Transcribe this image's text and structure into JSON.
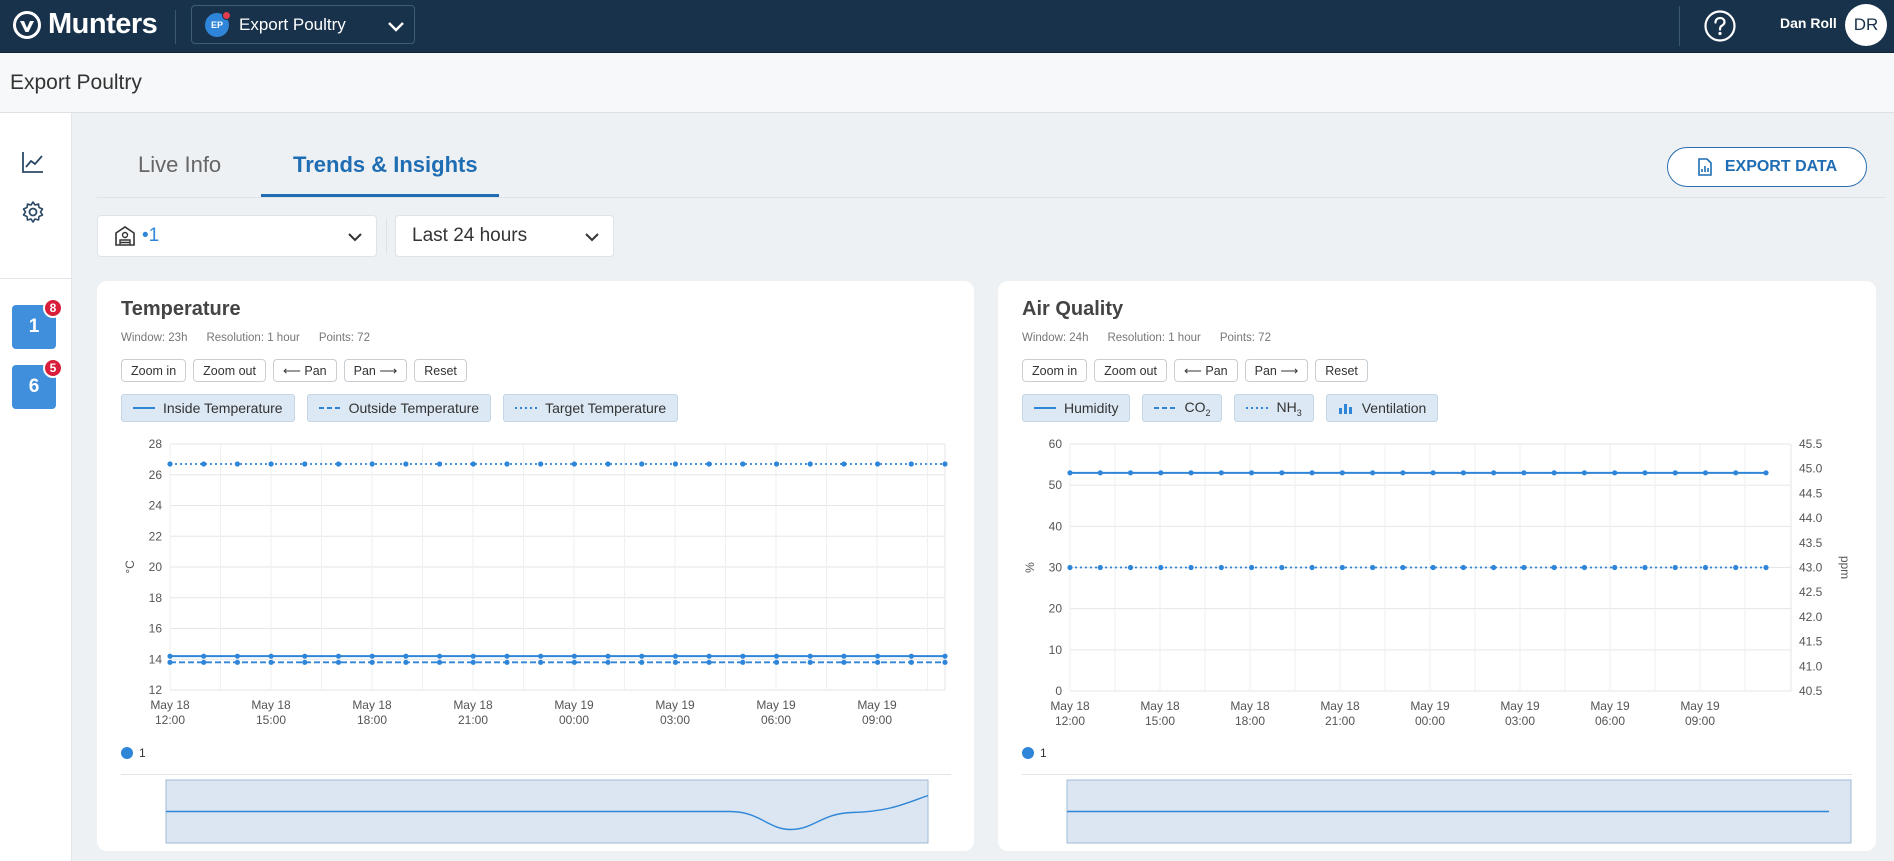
{
  "topbar": {
    "brand": "Munters",
    "site_badge": "EP",
    "site_name": "Export Poultry",
    "user_name": "Dan Roll",
    "user_initials": "DR"
  },
  "page": {
    "title": "Export Poultry"
  },
  "sidebar": {
    "houses": [
      {
        "label": "1",
        "badge": "8"
      },
      {
        "label": "6",
        "badge": "5"
      }
    ]
  },
  "tabs": [
    {
      "label": "Live Info",
      "active": false
    },
    {
      "label": "Trends & Insights",
      "active": true
    }
  ],
  "export_label": "EXPORT DATA",
  "filters": {
    "house": "•1",
    "range": "Last 24 hours"
  },
  "buttons": {
    "zoom_in": "Zoom in",
    "zoom_out": "Zoom out",
    "pan_left": "⟵ Pan",
    "pan_right": "Pan ⟶",
    "reset": "Reset"
  },
  "colors": {
    "accent": "#1f6db3",
    "series": "#2f86d9",
    "topbar": "#17324a",
    "badge": "#d81e3a"
  },
  "temperature": {
    "title": "Temperature",
    "meta": {
      "window": "Window: 23h",
      "resolution": "Resolution: 1  hour",
      "points": "Points: 72"
    },
    "legend": [
      "Inside Temperature",
      "Outside Temperature",
      "Target Temperature"
    ],
    "series_label": "1",
    "chart_data": {
      "type": "line",
      "ylabel": "°C",
      "ylim": [
        12,
        28
      ],
      "yticks": [
        "28",
        "26",
        "24",
        "22",
        "20",
        "18",
        "16",
        "14",
        "12"
      ],
      "xticks": [
        [
          "May 18",
          "12:00"
        ],
        [
          "May 18",
          "15:00"
        ],
        [
          "May 18",
          "18:00"
        ],
        [
          "May 18",
          "21:00"
        ],
        [
          "May 19",
          "00:00"
        ],
        [
          "May 19",
          "03:00"
        ],
        [
          "May 19",
          "06:00"
        ],
        [
          "May 19",
          "09:00"
        ]
      ],
      "series": [
        {
          "name": "Inside Temperature",
          "style": "solid",
          "value": 14.2
        },
        {
          "name": "Outside Temperature",
          "style": "dashed",
          "value": 13.8
        },
        {
          "name": "Target Temperature",
          "style": "dotted",
          "value": 26.7
        }
      ],
      "points_per_series": 24
    }
  },
  "air_quality": {
    "title": "Air Quality",
    "meta": {
      "window": "Window: 24h",
      "resolution": "Resolution: 1  hour",
      "points": "Points: 72"
    },
    "legend": [
      "Humidity",
      "CO",
      "NH",
      "Ventilation"
    ],
    "legend_subscripts": [
      "",
      "2",
      "3",
      ""
    ],
    "series_label": "1",
    "chart_data": {
      "type": "line",
      "ylabel": "%",
      "ylabel_right": "ppm",
      "ylim": [
        0,
        60
      ],
      "ylim_right": [
        40.5,
        45.5
      ],
      "yticks": [
        "60",
        "50",
        "40",
        "30",
        "20",
        "10",
        "0"
      ],
      "yticks_right": [
        "45.5",
        "45.0",
        "44.5",
        "44.0",
        "43.5",
        "43.0",
        "42.5",
        "42.0",
        "41.5",
        "41.0",
        "40.5"
      ],
      "xticks": [
        [
          "May 18",
          "12:00"
        ],
        [
          "May 18",
          "15:00"
        ],
        [
          "May 18",
          "18:00"
        ],
        [
          "May 18",
          "21:00"
        ],
        [
          "May 19",
          "00:00"
        ],
        [
          "May 19",
          "03:00"
        ],
        [
          "May 19",
          "06:00"
        ],
        [
          "May 19",
          "09:00"
        ]
      ],
      "series": [
        {
          "name": "Humidity",
          "style": "solid",
          "value": 53
        },
        {
          "name": "NH3",
          "style": "dotted",
          "value": 30
        }
      ],
      "points_per_series": 24
    }
  }
}
